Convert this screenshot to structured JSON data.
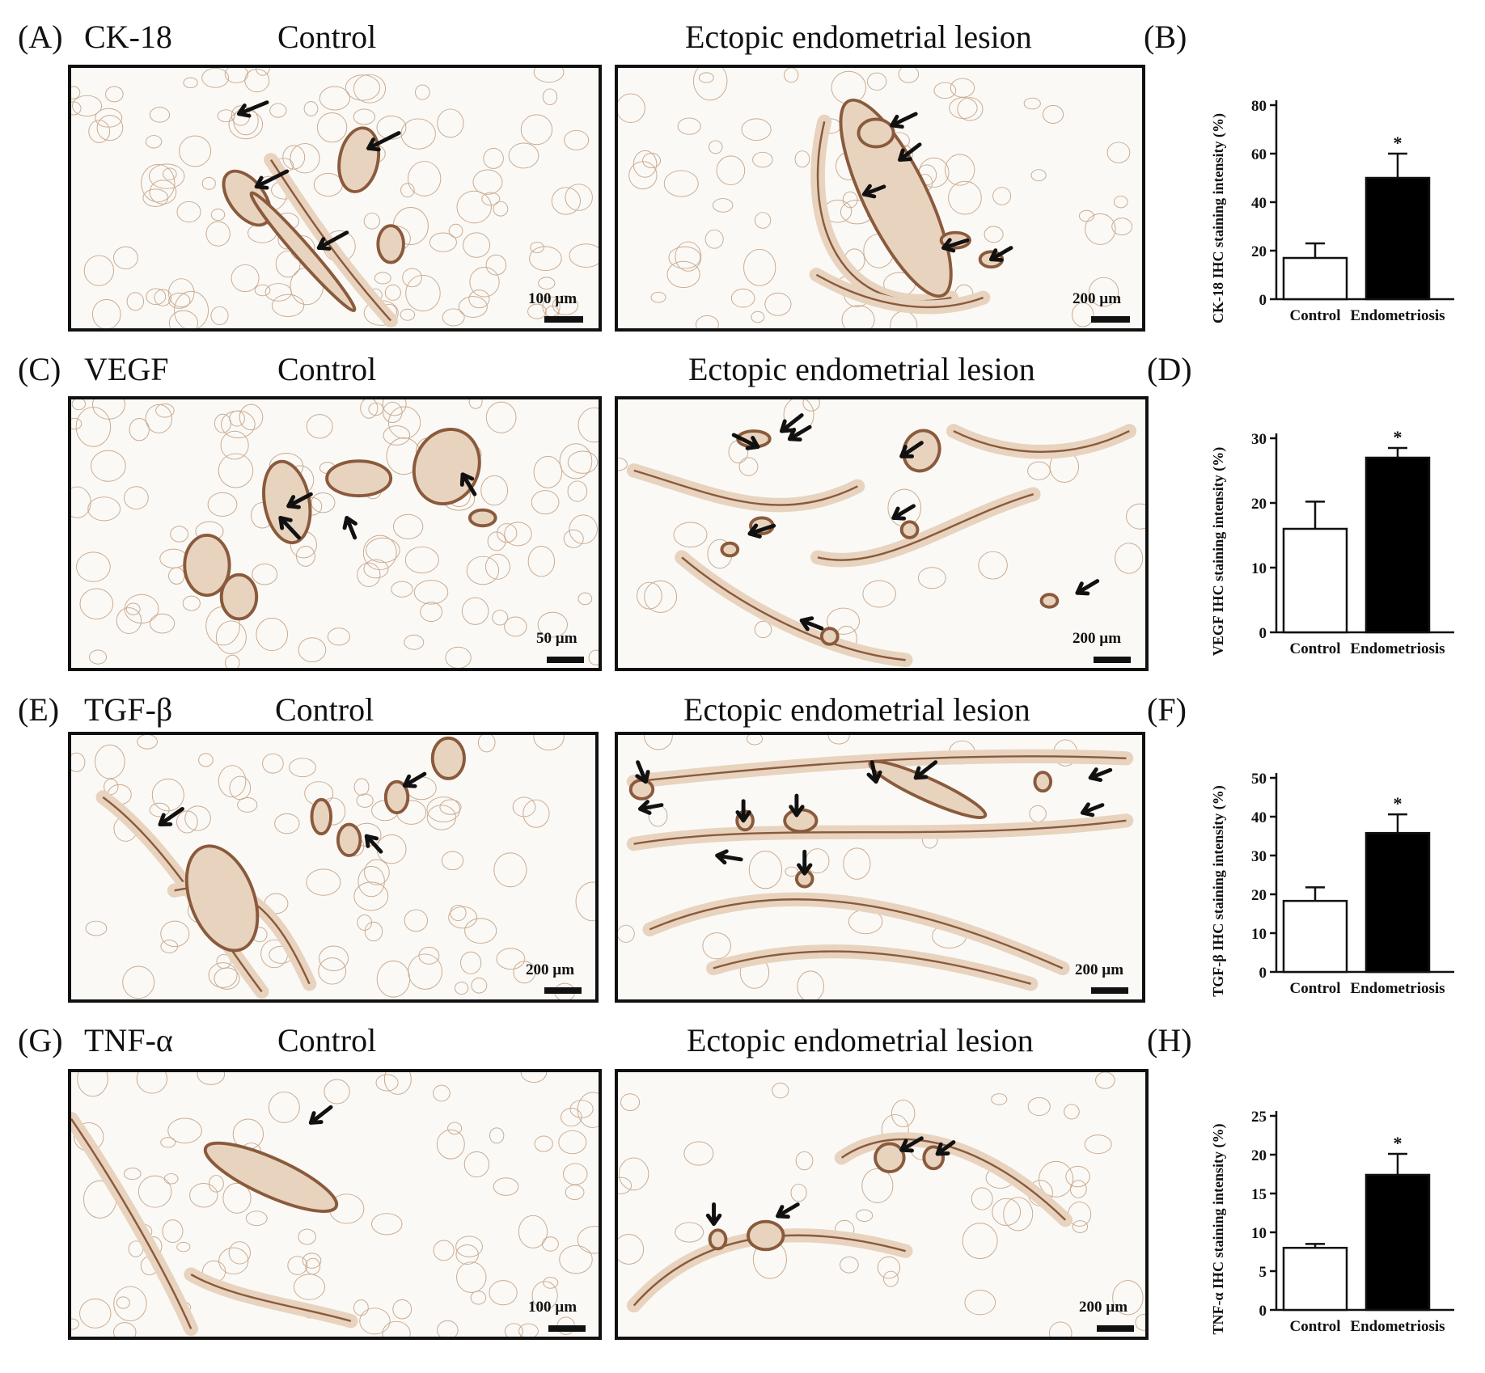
{
  "rows": [
    {
      "panel_label": "(A)",
      "marker": "CK-18",
      "control_title": "Control",
      "lesion_title": "Ectopic endometrial lesion",
      "control_scale": "100 µm",
      "lesion_scale": "200 µm",
      "chart_label": "(B)"
    },
    {
      "panel_label": "(C)",
      "marker": "VEGF",
      "control_title": "Control",
      "lesion_title": "Ectopic endometrial lesion",
      "control_scale": "50 µm",
      "lesion_scale": "200 µm",
      "chart_label": "(D)"
    },
    {
      "panel_label": "(E)",
      "marker": "TGF-β",
      "control_title": "Control",
      "lesion_title": "Ectopic endometrial lesion",
      "control_scale": "200 µm",
      "lesion_scale": "200 µm",
      "chart_label": "(F)"
    },
    {
      "panel_label": "(G)",
      "marker": "TNF-α",
      "control_title": "Control",
      "lesion_title": "Ectopic endometrial lesion",
      "control_scale": "100 µm",
      "lesion_scale": "200 µm",
      "chart_label": "(H)"
    }
  ],
  "colors": {
    "control_bar": "#ffffff",
    "endometriosis_bar": "#000000",
    "tissue_stain": "#8a5a3c",
    "tissue_light": "#e8d3bf"
  },
  "chart_data": [
    {
      "type": "bar",
      "categories": [
        "Control",
        "Endometriosis"
      ],
      "values": [
        17,
        50
      ],
      "errors": [
        6,
        10
      ],
      "significance": [
        "",
        "*"
      ],
      "ylabel": "CK-18 IHC staining intensity (%)",
      "ylim": [
        0,
        80
      ],
      "yticks": [
        0,
        20,
        40,
        60,
        80
      ]
    },
    {
      "type": "bar",
      "categories": [
        "Control",
        "Endometriosis"
      ],
      "values": [
        16,
        27
      ],
      "errors": [
        4.2,
        1.5
      ],
      "significance": [
        "",
        "*"
      ],
      "ylabel": "VEGF IHC staining intensity (%)",
      "ylim": [
        0,
        30
      ],
      "yticks": [
        0,
        10,
        20,
        30
      ]
    },
    {
      "type": "bar",
      "categories": [
        "Control",
        "Endometriosis"
      ],
      "values": [
        18.3,
        35.8
      ],
      "errors": [
        3.5,
        4.8
      ],
      "significance": [
        "",
        "*"
      ],
      "ylabel": "TGF-β IHC staining intensity (%)",
      "ylim": [
        0,
        50
      ],
      "yticks": [
        0,
        10,
        20,
        30,
        40,
        50
      ]
    },
    {
      "type": "bar",
      "categories": [
        "Control",
        "Endometriosis"
      ],
      "values": [
        8,
        17.4
      ],
      "errors": [
        0.5,
        2.7
      ],
      "significance": [
        "",
        "*"
      ],
      "ylabel": "TNF-α IHC staining intensity (%)",
      "ylim": [
        0,
        25
      ],
      "yticks": [
        0,
        5,
        10,
        15,
        20,
        25
      ]
    }
  ]
}
